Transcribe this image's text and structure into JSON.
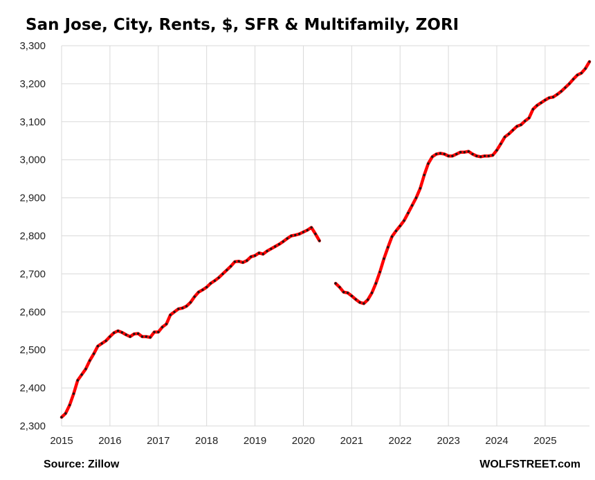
{
  "chart_data": {
    "type": "line",
    "title": "San Jose, City, Rents, $, SFR & Multifamily, ZORI",
    "xlabel": "",
    "ylabel": "",
    "ylim": [
      2300,
      3300
    ],
    "xlim": [
      2015.0,
      2025.917
    ],
    "y_ticks": [
      "2,300",
      "2,400",
      "2,500",
      "2,600",
      "2,700",
      "2,800",
      "2,900",
      "3,000",
      "3,100",
      "3,200",
      "3,300"
    ],
    "x_ticks": [
      "2015",
      "2016",
      "2017",
      "2018",
      "2019",
      "2020",
      "2021",
      "2022",
      "2023",
      "2024",
      "2025"
    ],
    "grid": true,
    "legend": "none",
    "colors": {
      "line": "#ff0000",
      "dots": "#1a1a1a"
    },
    "series": [
      {
        "segments": [
          [
            [
              2015.0,
              2323
            ],
            [
              2015.083,
              2333
            ],
            [
              2015.167,
              2355
            ],
            [
              2015.25,
              2385
            ],
            [
              2015.333,
              2420
            ],
            [
              2015.417,
              2435
            ],
            [
              2015.5,
              2450
            ],
            [
              2015.583,
              2472
            ],
            [
              2015.667,
              2490
            ],
            [
              2015.75,
              2510
            ],
            [
              2015.833,
              2517
            ],
            [
              2015.917,
              2524
            ],
            [
              2016.0,
              2535
            ],
            [
              2016.083,
              2545
            ],
            [
              2016.167,
              2550
            ],
            [
              2016.25,
              2546
            ],
            [
              2016.333,
              2540
            ],
            [
              2016.417,
              2535
            ],
            [
              2016.5,
              2542
            ],
            [
              2016.583,
              2543
            ],
            [
              2016.667,
              2535
            ],
            [
              2016.75,
              2535
            ],
            [
              2016.833,
              2533
            ],
            [
              2016.917,
              2547
            ],
            [
              2017.0,
              2547
            ],
            [
              2017.083,
              2560
            ],
            [
              2017.167,
              2568
            ],
            [
              2017.25,
              2592
            ],
            [
              2017.333,
              2600
            ],
            [
              2017.417,
              2608
            ],
            [
              2017.5,
              2610
            ],
            [
              2017.583,
              2615
            ],
            [
              2017.667,
              2625
            ],
            [
              2017.75,
              2640
            ],
            [
              2017.833,
              2652
            ],
            [
              2017.917,
              2658
            ],
            [
              2018.0,
              2665
            ],
            [
              2018.083,
              2675
            ],
            [
              2018.167,
              2682
            ],
            [
              2018.25,
              2690
            ],
            [
              2018.333,
              2700
            ],
            [
              2018.417,
              2710
            ],
            [
              2018.5,
              2720
            ],
            [
              2018.583,
              2732
            ],
            [
              2018.667,
              2733
            ],
            [
              2018.75,
              2730
            ],
            [
              2018.833,
              2735
            ],
            [
              2018.917,
              2745
            ],
            [
              2019.0,
              2748
            ],
            [
              2019.083,
              2755
            ],
            [
              2019.167,
              2752
            ],
            [
              2019.25,
              2760
            ],
            [
              2019.333,
              2766
            ],
            [
              2019.417,
              2772
            ],
            [
              2019.5,
              2778
            ],
            [
              2019.583,
              2785
            ],
            [
              2019.667,
              2793
            ],
            [
              2019.75,
              2800
            ],
            [
              2019.833,
              2802
            ],
            [
              2019.917,
              2805
            ],
            [
              2020.0,
              2810
            ],
            [
              2020.083,
              2815
            ],
            [
              2020.167,
              2822
            ],
            [
              2020.25,
              2805
            ],
            [
              2020.333,
              2787
            ]
          ],
          [
            [
              2020.667,
              2675
            ],
            [
              2020.75,
              2665
            ],
            [
              2020.833,
              2652
            ],
            [
              2020.917,
              2650
            ],
            [
              2021.0,
              2642
            ],
            [
              2021.083,
              2633
            ],
            [
              2021.167,
              2625
            ],
            [
              2021.25,
              2622
            ],
            [
              2021.333,
              2632
            ],
            [
              2021.417,
              2650
            ],
            [
              2021.5,
              2675
            ],
            [
              2021.583,
              2705
            ],
            [
              2021.667,
              2740
            ],
            [
              2021.75,
              2770
            ],
            [
              2021.833,
              2798
            ],
            [
              2021.917,
              2813
            ],
            [
              2022.0,
              2826
            ],
            [
              2022.083,
              2840
            ],
            [
              2022.167,
              2860
            ],
            [
              2022.25,
              2880
            ],
            [
              2022.333,
              2900
            ],
            [
              2022.417,
              2925
            ],
            [
              2022.5,
              2960
            ],
            [
              2022.583,
              2990
            ],
            [
              2022.667,
              3008
            ],
            [
              2022.75,
              3015
            ],
            [
              2022.833,
              3017
            ],
            [
              2022.917,
              3015
            ],
            [
              2023.0,
              3010
            ],
            [
              2023.083,
              3010
            ],
            [
              2023.167,
              3015
            ],
            [
              2023.25,
              3020
            ],
            [
              2023.333,
              3020
            ],
            [
              2023.417,
              3022
            ],
            [
              2023.5,
              3015
            ],
            [
              2023.583,
              3010
            ],
            [
              2023.667,
              3008
            ],
            [
              2023.75,
              3010
            ],
            [
              2023.833,
              3010
            ],
            [
              2023.917,
              3012
            ],
            [
              2024.0,
              3025
            ],
            [
              2024.083,
              3042
            ],
            [
              2024.167,
              3060
            ],
            [
              2024.25,
              3068
            ],
            [
              2024.333,
              3078
            ],
            [
              2024.417,
              3088
            ],
            [
              2024.5,
              3092
            ],
            [
              2024.583,
              3102
            ],
            [
              2024.667,
              3110
            ],
            [
              2024.75,
              3133
            ],
            [
              2024.833,
              3143
            ],
            [
              2024.917,
              3150
            ],
            [
              2025.0,
              3157
            ],
            [
              2025.083,
              3163
            ],
            [
              2025.167,
              3165
            ],
            [
              2025.25,
              3172
            ],
            [
              2025.333,
              3180
            ],
            [
              2025.417,
              3190
            ],
            [
              2025.5,
              3200
            ],
            [
              2025.583,
              3212
            ],
            [
              2025.667,
              3223
            ],
            [
              2025.75,
              3228
            ],
            [
              2025.833,
              3240
            ],
            [
              2025.917,
              3258
            ]
          ]
        ]
      }
    ]
  },
  "footer": {
    "source": "Source: Zillow",
    "brand": "WOLFSTREET.com"
  }
}
